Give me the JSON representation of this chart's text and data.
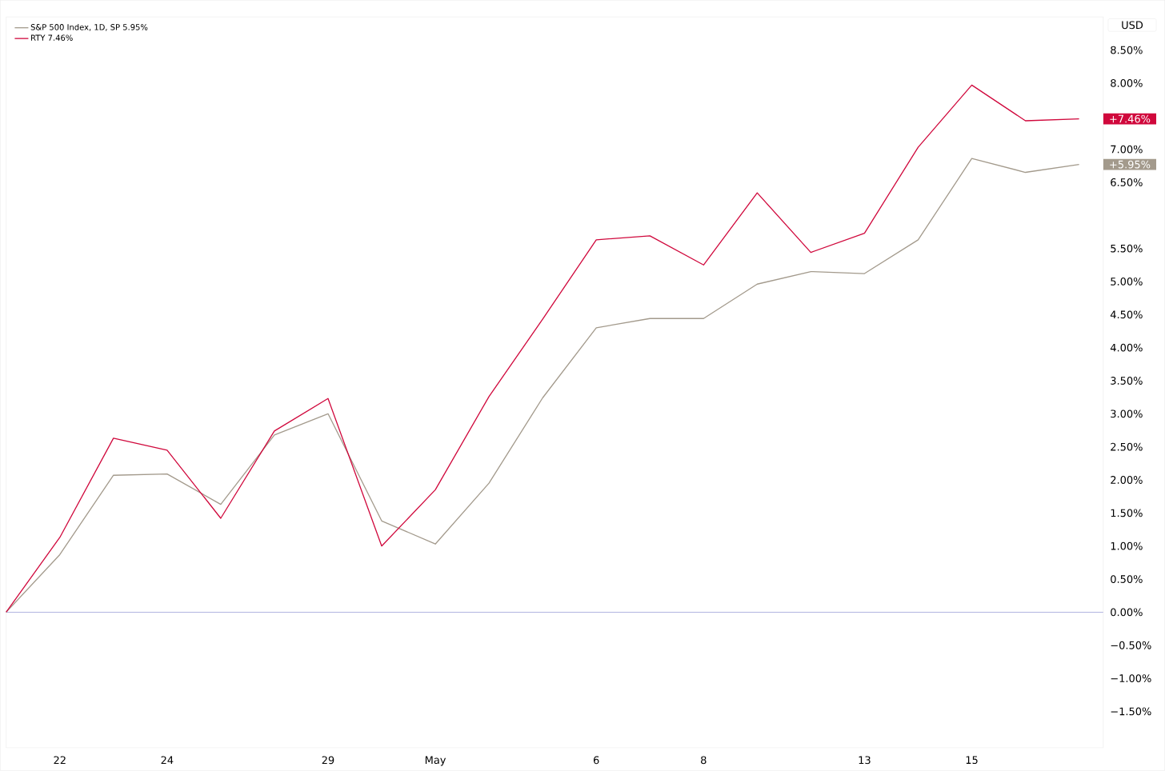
{
  "chart_data": {
    "type": "line",
    "ylabel": "USD",
    "categories": [
      null,
      "22",
      null,
      "24",
      null,
      null,
      "29",
      null,
      "May",
      null,
      null,
      "6",
      null,
      "8",
      null,
      null,
      "13",
      null,
      "15",
      null,
      null
    ],
    "series": [
      {
        "name": "S&P 500 Index, 1D, SP 5.95%",
        "color": "#a39a8c",
        "values": [
          0,
          0.87,
          2.07,
          2.09,
          1.63,
          2.68,
          3.0,
          1.38,
          1.03,
          1.95,
          3.24,
          4.3,
          4.44,
          4.44,
          4.96,
          5.15,
          5.12,
          5.63,
          6.86,
          6.65,
          6.77
        ]
      },
      {
        "name": "RTY 7.46%",
        "color": "#d0083c",
        "values": [
          0,
          1.13,
          2.63,
          2.45,
          1.42,
          2.74,
          3.23,
          1.0,
          1.85,
          3.26,
          4.43,
          5.63,
          5.69,
          5.25,
          6.34,
          5.44,
          5.73,
          7.03,
          7.97,
          7.43,
          7.46
        ]
      }
    ],
    "annotations": [
      "+5.95%",
      "+7.46%"
    ],
    "ref_lines": [
      {
        "axis": "y",
        "value": 0,
        "color": "#b2b5e0"
      }
    ],
    "ylim": [
      -2.05,
      9.0
    ],
    "yticks": [
      {
        "value": -1.5,
        "label": "−1.50%"
      },
      {
        "value": -1.0,
        "label": "−1.00%"
      },
      {
        "value": -0.5,
        "label": "−0.50%"
      },
      {
        "value": 0,
        "label": "0.00%"
      },
      {
        "value": 0.5,
        "label": "0.50%"
      },
      {
        "value": 1.0,
        "label": "1.00%"
      },
      {
        "value": 1.5,
        "label": "1.50%"
      },
      {
        "value": 2.0,
        "label": "2.00%"
      },
      {
        "value": 2.5,
        "label": "2.50%"
      },
      {
        "value": 3.0,
        "label": "3.00%"
      },
      {
        "value": 3.5,
        "label": "3.50%"
      },
      {
        "value": 4.0,
        "label": "4.00%"
      },
      {
        "value": 4.5,
        "label": "4.50%"
      },
      {
        "value": 5.0,
        "label": "5.00%"
      },
      {
        "value": 5.5,
        "label": "5.50%"
      },
      {
        "value": 6.5,
        "label": "6.50%"
      },
      {
        "value": 7.0,
        "label": "7.00%"
      },
      {
        "value": 8.0,
        "label": "8.00%"
      },
      {
        "value": 8.5,
        "label": "8.50%"
      }
    ],
    "legend": "top left",
    "grid": false,
    "marker": "none",
    "line_style": "solid"
  }
}
